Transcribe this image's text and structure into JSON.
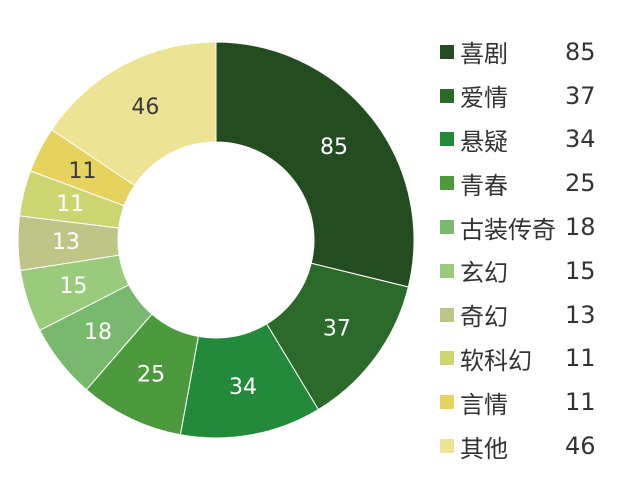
{
  "chart_data": {
    "type": "pie",
    "donut": true,
    "categories": [
      "喜剧",
      "爱情",
      "悬疑",
      "青春",
      "古装传奇",
      "玄幻",
      "奇幻",
      "软科幻",
      "言情",
      "其他"
    ],
    "values": [
      85,
      37,
      34,
      25,
      18,
      15,
      13,
      11,
      11,
      46
    ],
    "colors": [
      "#234d20",
      "#2b6a2a",
      "#238a3c",
      "#4d9a3e",
      "#78b96d",
      "#9acb7c",
      "#bfc487",
      "#cdd572",
      "#e6d35f",
      "#ede394"
    ],
    "label_dark": [
      false,
      false,
      false,
      false,
      false,
      false,
      false,
      false,
      true,
      true
    ],
    "legend_placement": "right"
  }
}
